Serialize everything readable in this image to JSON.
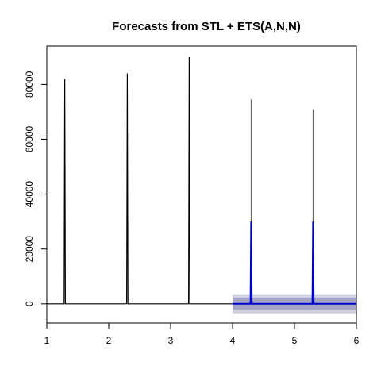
{
  "chart_data": {
    "type": "line",
    "title": "Forecasts from STL +  ETS(A,N,N)",
    "xlabel": "",
    "ylabel": "",
    "xlim": [
      1,
      6
    ],
    "ylim": [
      -7000,
      94000
    ],
    "x_ticks": [
      1,
      2,
      3,
      4,
      5,
      6
    ],
    "x_tick_labels": [
      "1",
      "2",
      "3",
      "4",
      "5",
      "6"
    ],
    "y_ticks": [
      0,
      20000,
      40000,
      60000,
      80000
    ],
    "y_tick_labels": [
      "0",
      "20000",
      "40000",
      "60000",
      "80000"
    ],
    "grid": false,
    "series": [
      {
        "role": "observed",
        "color": "#000000",
        "x": [
          1.0,
          1.28,
          1.29,
          1.3,
          1.31,
          2.29,
          2.3,
          2.31,
          3.29,
          3.3,
          3.31,
          4.0
        ],
        "y": [
          0,
          0,
          82000,
          0,
          0,
          0,
          84000,
          0,
          0,
          90000,
          0,
          0
        ]
      },
      {
        "role": "forecast",
        "color": "#0000cc",
        "x": [
          4.0,
          4.29,
          4.3,
          4.31,
          5.29,
          5.3,
          5.31,
          6.0
        ],
        "y": [
          0,
          0,
          30000,
          0,
          0,
          30000,
          0,
          0
        ]
      }
    ],
    "spikes_outer": [
      {
        "x": 4.3,
        "y": 74500
      },
      {
        "x": 5.3,
        "y": 71000
      }
    ],
    "intervals": [
      {
        "level": "95",
        "x": [
          4.0,
          6.0
        ],
        "lower": -3500,
        "upper": 3500,
        "color": "#d1d2e0"
      },
      {
        "level": "80",
        "x": [
          4.0,
          6.0
        ],
        "lower": -2200,
        "upper": 2200,
        "color": "#a5a6c6"
      }
    ]
  }
}
